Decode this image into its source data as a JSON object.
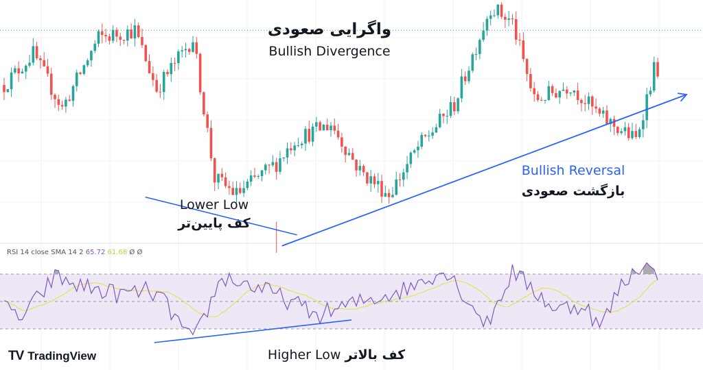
{
  "annotations": {
    "title_fa": "واگرایی صعودی",
    "title_en": "Bullish Divergence",
    "reversal_en": "Bullish Reversal",
    "reversal_fa": "بازگشت صعودی",
    "lower_low_en": "Lower Low",
    "lower_low_fa": "کف پایین‌تر",
    "higher_low_en": "Higher Low",
    "higher_low_fa": "کف بالاتر"
  },
  "rsi_legend": {
    "label": "RSI 14 close SMA 14 2",
    "rsi_value": "65.72",
    "sma_value": "61.68",
    "extra1": "Ø",
    "extra2": "Ø"
  },
  "brand": {
    "logo_mark": "TV",
    "logo_text": "TradingView",
    "logo_icon": "tradingview-logo-icon"
  },
  "colors": {
    "up": "#26a69a",
    "down": "#ef5350",
    "trendline": "#2962ff",
    "rsi_line": "#7e57c2",
    "rsi_sma": "#e3e35a",
    "rsi_band": "#ede7f6",
    "oversold_fill": "#ef9a9a",
    "overbought_fill": "#9e9e9e"
  },
  "chart_data": [
    {
      "type": "candlestick",
      "panel": "price",
      "trend": {
        "x": [
          0,
          8,
          16,
          26,
          36,
          42,
          52,
          58,
          64,
          75,
          80,
          90,
          98,
          106,
          114,
          124,
          134,
          140,
          146,
          156,
          164,
          174,
          179
        ],
        "y": [
          80,
          88,
          74,
          92,
          94,
          79,
          92,
          56,
          52,
          60,
          66,
          70,
          58,
          52,
          64,
          75,
          100,
          96,
          76,
          80,
          72,
          66,
          84
        ]
      },
      "price_line_level": 94,
      "lows_marked": [
        {
          "candle": 40,
          "y": 52
        },
        {
          "candle": 75,
          "y": 43
        }
      ],
      "ylim": [
        40,
        100
      ]
    },
    {
      "type": "line",
      "panel": "rsi",
      "name": "RSI",
      "trend": {
        "x": [
          0,
          5,
          14,
          20,
          32,
          40,
          44,
          52,
          60,
          70,
          79,
          86,
          96,
          112,
          116,
          122,
          128,
          133,
          140,
          146,
          152,
          160,
          164,
          170,
          176,
          180
        ],
        "y": [
          45,
          38,
          68,
          62,
          55,
          58,
          50,
          20,
          68,
          60,
          50,
          40,
          48,
          60,
          68,
          72,
          50,
          33,
          72,
          58,
          44,
          48,
          30,
          62,
          79,
          65.7
        ]
      },
      "sma_line": true,
      "overbought": 70,
      "oversold": 30,
      "midline": 50,
      "lows_marked": [
        {
          "candle": 44,
          "y": 22
        },
        {
          "candle": 90,
          "y": 32
        }
      ],
      "ylim": [
        15,
        85
      ]
    }
  ]
}
